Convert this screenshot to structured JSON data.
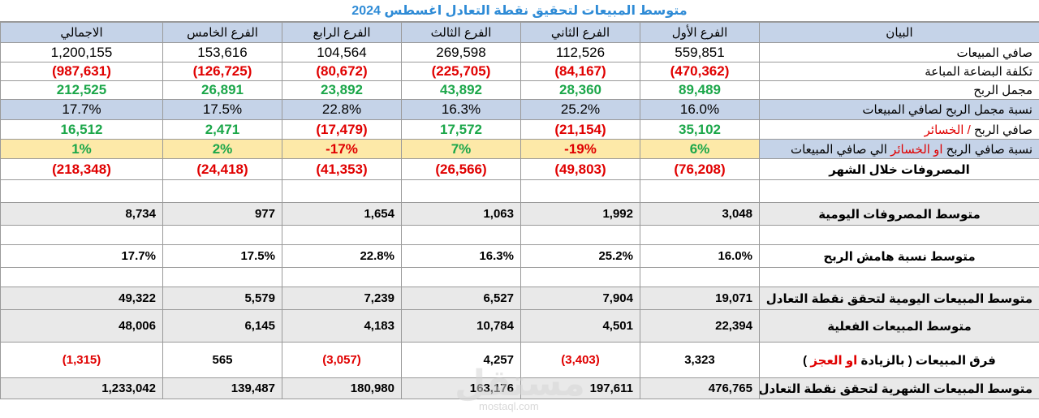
{
  "title": "متوسط المبيعات لتحقيق نقطة التعادل اغسطس 2024",
  "headers": {
    "total": "الاجمالي",
    "b5": "الفرع الخامس",
    "b4": "الفرع الرابع",
    "b3": "الفرع الثالث",
    "b2": "الفرع الثاني",
    "b1": "الفرع الأول",
    "label": "البيان"
  },
  "rows": {
    "net_sales": {
      "label": "صافي المبيعات",
      "total": "1,200,155",
      "b5": "153,616",
      "b4": "104,564",
      "b3": "269,598",
      "b2": "112,526",
      "b1": "559,851"
    },
    "cogs": {
      "label": "تكلفة البضاعة المباعة",
      "total": "(987,631)",
      "b5": "(126,725)",
      "b4": "(80,672)",
      "b3": "(225,705)",
      "b2": "(84,167)",
      "b1": "(470,362)"
    },
    "gross_profit": {
      "label": "مجمل الربح",
      "total": "212,525",
      "b5": "26,891",
      "b4": "23,892",
      "b3": "43,892",
      "b2": "28,360",
      "b1": "89,489"
    },
    "gross_margin": {
      "label": "نسبة مجمل الربح لصافي المبيعات",
      "total": "17.7%",
      "b5": "17.5%",
      "b4": "22.8%",
      "b3": "16.3%",
      "b2": "25.2%",
      "b1": "16.0%"
    },
    "net_profit": {
      "label_a": "صافي الربح",
      "label_sep": " / ",
      "label_b": "الخسائر",
      "total": "16,512",
      "b5": "2,471",
      "b4": "(17,479)",
      "b3": "17,572",
      "b2": "(21,154)",
      "b1": "35,102"
    },
    "net_ratio": {
      "label_a": "نسبة صافي الربح ",
      "label_b": "او الخسائر",
      "label_c": " الي صافي المبيعات",
      "total": "1%",
      "b5": "2%",
      "b4": "-17%",
      "b3": "7%",
      "b2": "-19%",
      "b1": "6%"
    },
    "expenses": {
      "label": "المصروفات خلال الشهر",
      "total": "(218,348)",
      "b5": "(24,418)",
      "b4": "(41,353)",
      "b3": "(26,566)",
      "b2": "(49,803)",
      "b1": "(76,208)"
    },
    "avg_daily_exp": {
      "label": "متوسط المصروفات اليومية",
      "total": "8,734",
      "b5": "977",
      "b4": "1,654",
      "b3": "1,063",
      "b2": "1,992",
      "b1": "3,048"
    },
    "avg_margin": {
      "label": "متوسط نسبة هامش الربح",
      "total": "17.7%",
      "b5": "17.5%",
      "b4": "22.8%",
      "b3": "16.3%",
      "b2": "25.2%",
      "b1": "16.0%"
    },
    "avg_daily_be": {
      "label": "متوسط المبيعات اليومية لتحقق نقطة التعادل",
      "total": "49,322",
      "b5": "5,579",
      "b4": "7,239",
      "b3": "6,527",
      "b2": "7,904",
      "b1": "19,071"
    },
    "avg_actual": {
      "label": "متوسط المبيعات الفعلية",
      "total": "48,006",
      "b5": "6,145",
      "b4": "4,183",
      "b3": "10,784",
      "b2": "4,501",
      "b1": "22,394"
    },
    "diff": {
      "label_a": "فرق المبيعات ( بالزيادة ",
      "label_b": "او العجز",
      "label_c": " )",
      "total": "(1,315)",
      "b5": "565",
      "b4": "(3,057)",
      "b3": "4,257",
      "b2": "(3,403)",
      "b1": "3,323"
    },
    "monthly_be": {
      "label": "متوسط المبيعات الشهرية لتحقق نقطة التعادل",
      "total": "1,233,042",
      "b5": "139,487",
      "b4": "180,980",
      "b3": "163,176",
      "b2": "197,611",
      "b1": "476,765"
    }
  },
  "watermark": {
    "text": "مستقل",
    "url": "mostaql.com"
  },
  "colors": {
    "accent": "#2e8bd6",
    "red": "#e00000",
    "green": "#1ca74a",
    "header_bg": "#c5d3e8",
    "gray_bg": "#e9e9e9",
    "yellow_bg": "#fde9a8"
  }
}
